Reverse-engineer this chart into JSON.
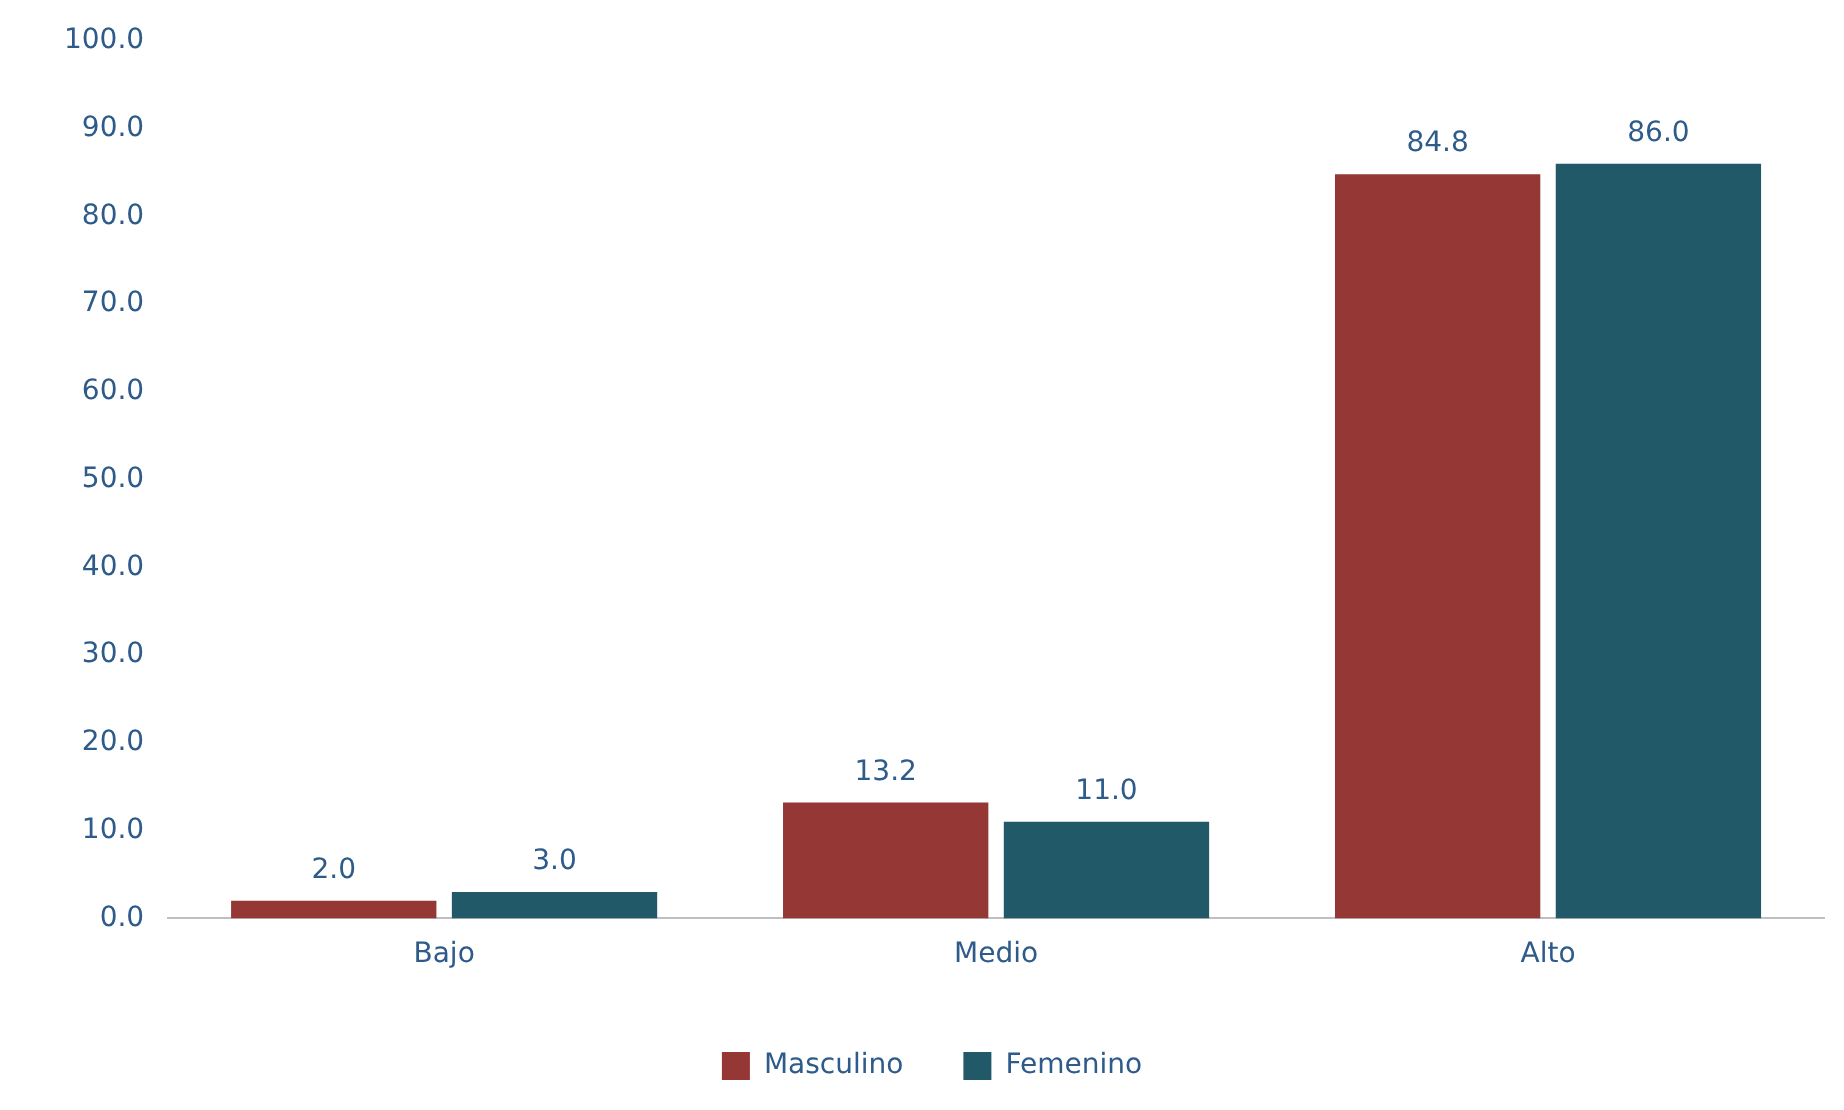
{
  "chart_data": {
    "type": "bar",
    "categories": [
      "Bajo",
      "Medio",
      "Alto"
    ],
    "series": [
      {
        "name": "Masculino",
        "color": "#953735",
        "values": [
          2.0,
          13.2,
          84.8
        ],
        "value_labels": [
          "2.0",
          "13.2",
          "84.8"
        ]
      },
      {
        "name": "Femenino",
        "color": "#215968",
        "values": [
          3.0,
          11.0,
          86.0
        ],
        "value_labels": [
          "3.0",
          "11.0",
          "86.0"
        ]
      }
    ],
    "ylim": [
      0,
      100
    ],
    "yticks": [
      {
        "value": 0,
        "label": "0.0"
      },
      {
        "value": 10,
        "label": "10.0"
      },
      {
        "value": 20,
        "label": "20.0"
      },
      {
        "value": 30,
        "label": "30.0"
      },
      {
        "value": 40,
        "label": "40.0"
      },
      {
        "value": 50,
        "label": "50.0"
      },
      {
        "value": 60,
        "label": "60.0"
      },
      {
        "value": 70,
        "label": "70.0"
      },
      {
        "value": 80,
        "label": "80.0"
      },
      {
        "value": 90,
        "label": "90.0"
      },
      {
        "value": 100,
        "label": "100.0"
      }
    ],
    "grid": false,
    "legend": "bottom"
  }
}
